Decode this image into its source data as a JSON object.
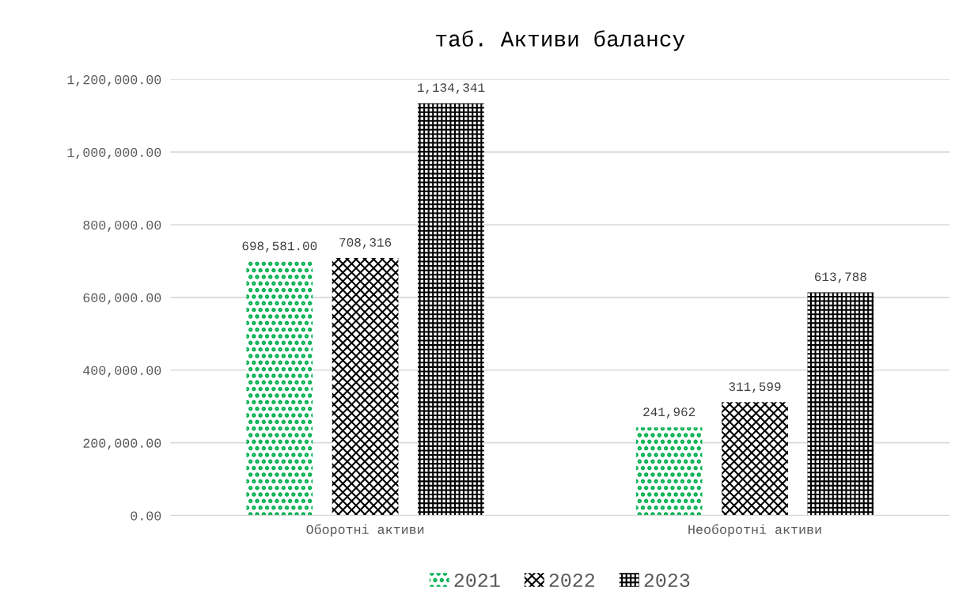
{
  "chart_data": {
    "type": "bar",
    "title": "таб. Активи балансу",
    "categories": [
      "Оборотні активи",
      "Необоротні активи"
    ],
    "series": [
      {
        "name": "2021",
        "color": "#00b050",
        "values": [
          698581,
          241962
        ],
        "value_labels": [
          "698,581.00",
          "241,962"
        ]
      },
      {
        "name": "2022",
        "color": "#000000",
        "values": [
          708316,
          311599
        ],
        "value_labels": [
          "708,316",
          "311,599"
        ]
      },
      {
        "name": "2023",
        "color": "#000000",
        "values": [
          1134341,
          613788
        ],
        "value_labels": [
          "1,134,341",
          "613,788"
        ]
      }
    ],
    "ylim": [
      0,
      1200000
    ],
    "yticks": [
      {
        "value": 0,
        "label": "0.00"
      },
      {
        "value": 200000,
        "label": "200,000.00"
      },
      {
        "value": 400000,
        "label": "400,000.00"
      },
      {
        "value": 600000,
        "label": "600,000.00"
      },
      {
        "value": 800000,
        "label": "800,000.00"
      },
      {
        "value": 1000000,
        "label": "1,000,000.00"
      },
      {
        "value": 1200000,
        "label": "1,200,000.00"
      }
    ],
    "grid": "y",
    "legend": "bottom"
  }
}
